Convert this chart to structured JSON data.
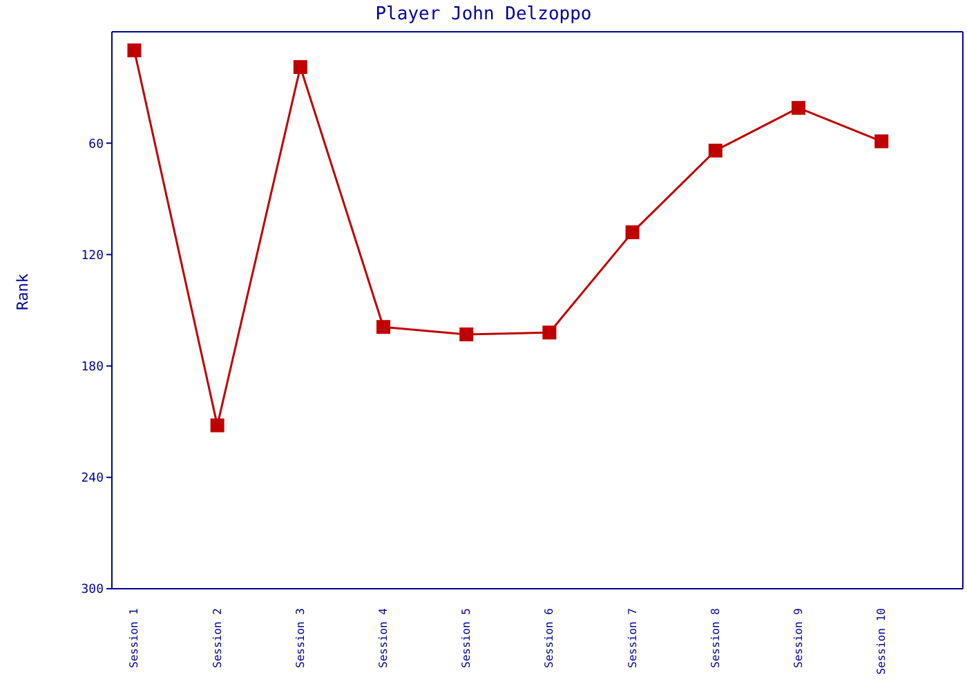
{
  "chart_data": {
    "type": "line",
    "title": "Player John Delzoppo",
    "ylabel": "Rank",
    "categories": [
      "Session 1",
      "Session 2",
      "Session 3",
      "Session 4",
      "Session 5",
      "Session 6",
      "Session 7",
      "Session 8",
      "Session 9",
      "Session 10"
    ],
    "series": [
      {
        "color": "#c00000",
        "values": [
          10,
          212,
          19,
          159,
          163,
          162,
          108,
          64,
          41,
          59
        ]
      }
    ],
    "ylim": [
      300,
      0
    ],
    "yticks": [
      60,
      120,
      180,
      240,
      300
    ],
    "grid": false,
    "legend": false,
    "marker": "square",
    "line_style": "solid"
  }
}
